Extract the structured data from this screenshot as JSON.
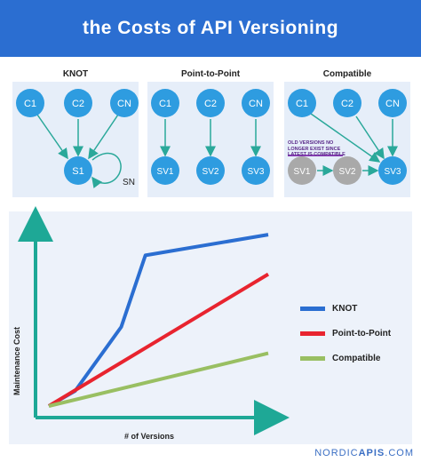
{
  "header": {
    "title": "the Costs of API Versioning"
  },
  "panels": [
    {
      "label": "KNOT",
      "clients": [
        "C1",
        "C2",
        "CN"
      ],
      "services": [
        "S1"
      ],
      "self_loop_label": "SN"
    },
    {
      "label": "Point-to-Point",
      "clients": [
        "C1",
        "C2",
        "CN"
      ],
      "services": [
        "SV1",
        "SV2",
        "SV3"
      ]
    },
    {
      "label": "Compatible",
      "clients": [
        "C1",
        "C2",
        "CN"
      ],
      "services": [
        "SV1",
        "SV2",
        "SV3"
      ],
      "note": "Old versions no longer exist since latest is compatible"
    }
  ],
  "colors": {
    "header": "#2b6ed1",
    "node": "#2e9ce0",
    "node_inactive": "#a9a9a9",
    "arrow": "#2aa89a",
    "panel_bg": "#e6eef9",
    "note_line": "#8a3fb5"
  },
  "chart_data": {
    "type": "line",
    "xlabel": "# of Versions",
    "ylabel": "Maintenance Cost",
    "legend_position": "right",
    "series": [
      {
        "name": "KNOT",
        "color": "#2b6ed1",
        "points": [
          [
            0,
            0
          ],
          [
            0.12,
            0.08
          ],
          [
            0.33,
            0.42
          ],
          [
            0.44,
            0.8
          ],
          [
            1.0,
            0.91
          ]
        ]
      },
      {
        "name": "Point-to-Point",
        "color": "#e8242f",
        "points": [
          [
            0,
            0
          ],
          [
            1.0,
            0.7
          ]
        ]
      },
      {
        "name": "Compatible",
        "color": "#99bf62",
        "points": [
          [
            0,
            0
          ],
          [
            1.0,
            0.28
          ]
        ]
      }
    ]
  },
  "footer": {
    "brand_light": "NORDIC",
    "brand_bold": "APIS",
    "domain": ".COM"
  }
}
